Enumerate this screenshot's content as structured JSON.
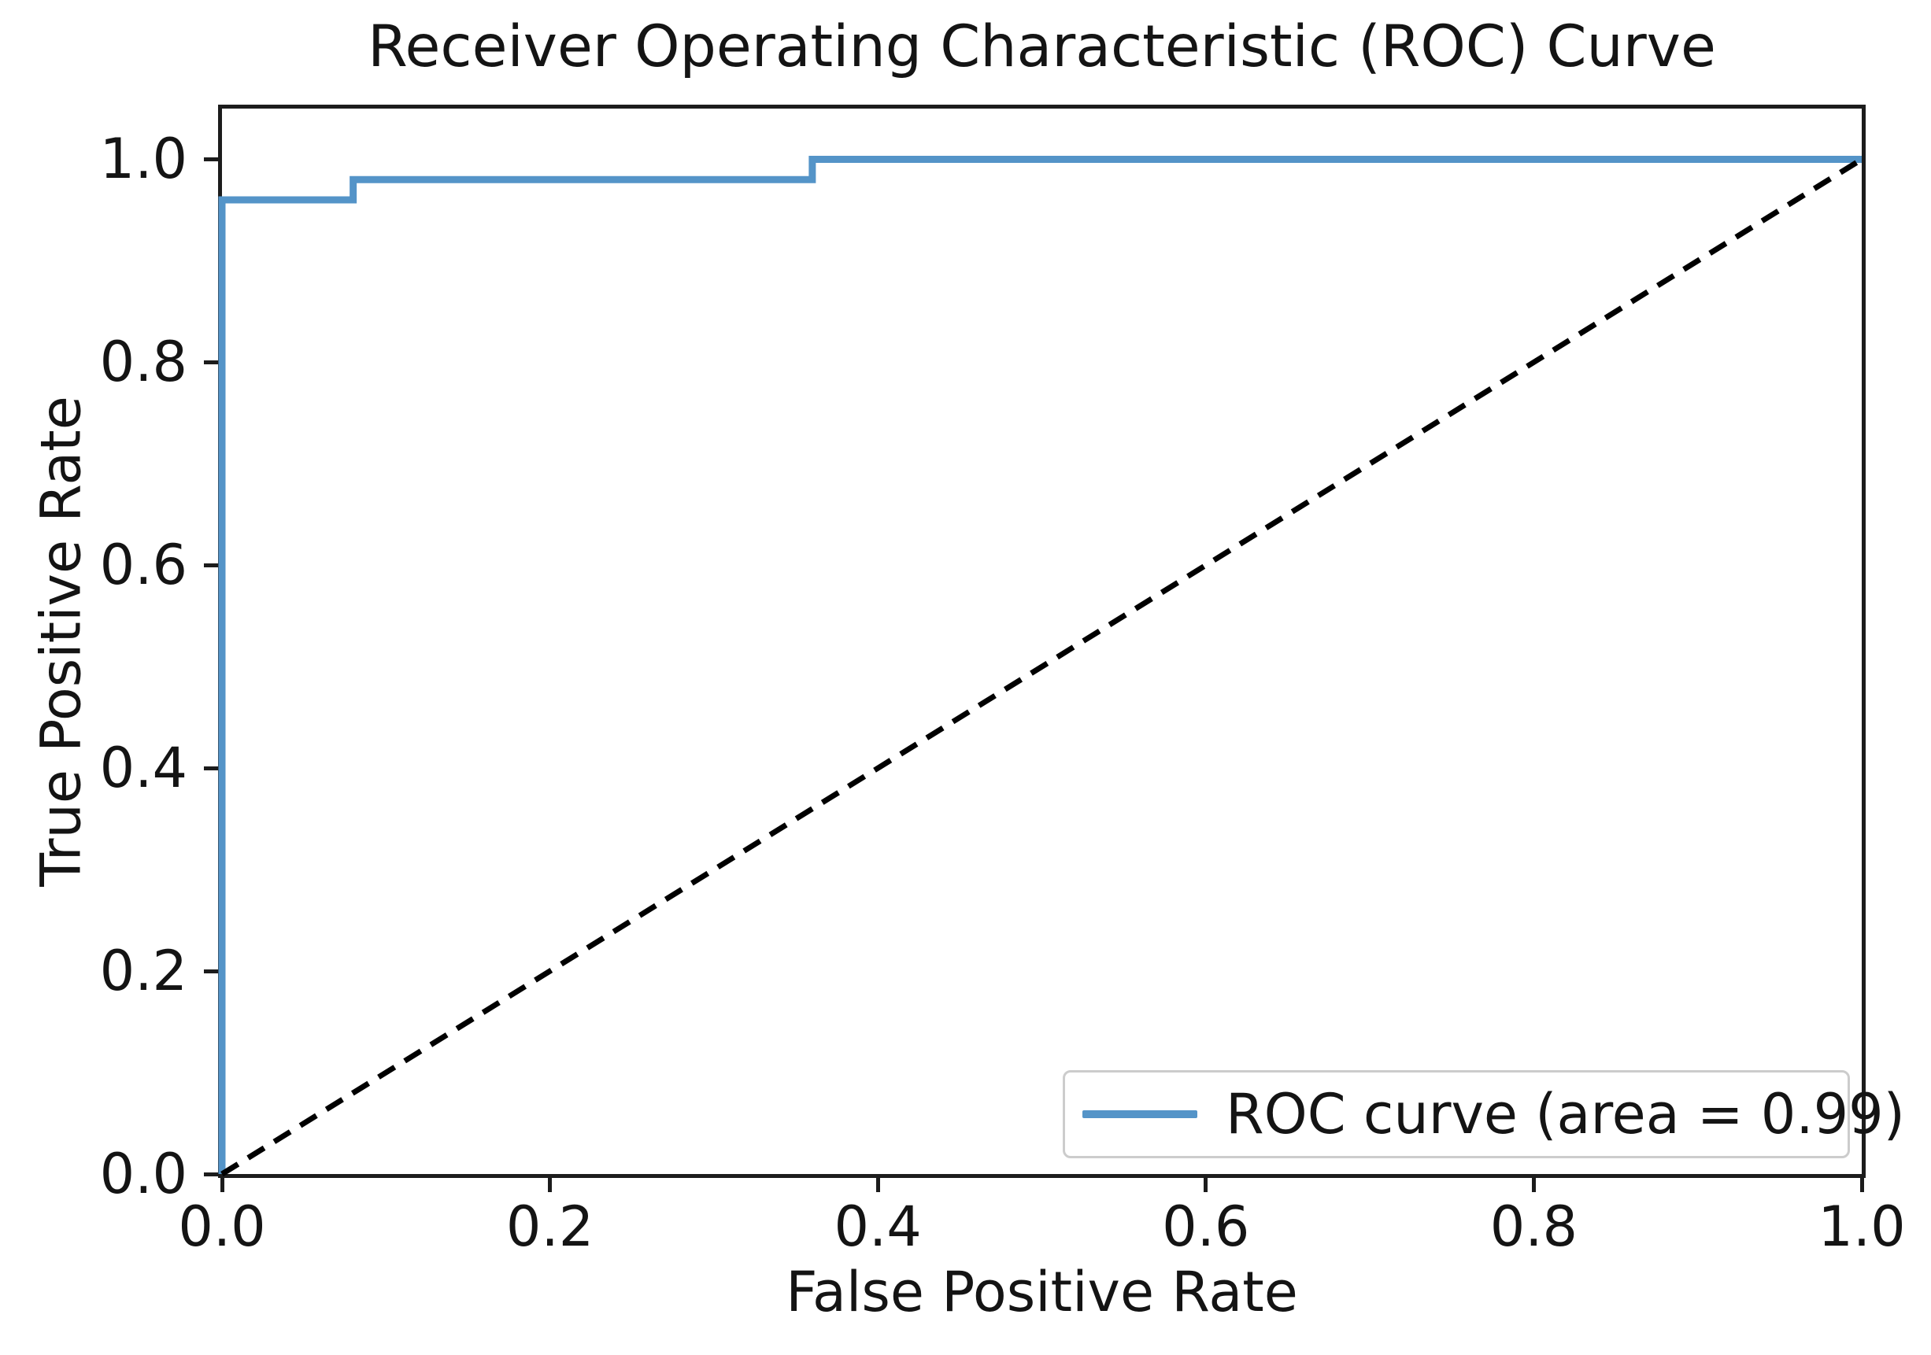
{
  "figure": {
    "title": "Receiver Operating Characteristic (ROC) Curve",
    "background_color": "#ffffff",
    "spine_color": "#1c1c1c",
    "text_color": "#141414"
  },
  "legend": {
    "position": "lower right",
    "border_color": "#cccccc",
    "entries": [
      {
        "label": "ROC curve (area = 0.99)",
        "color": "#5494c8",
        "style": "solid"
      }
    ]
  },
  "chart_data": {
    "type": "line",
    "title": "Receiver Operating Characteristic (ROC) Curve",
    "xlabel": "False Positive Rate",
    "ylabel": "True Positive Rate",
    "xlim": [
      0.0,
      1.0
    ],
    "ylim": [
      0.0,
      1.05
    ],
    "grid": false,
    "legend_position": "lower right",
    "x_tick_values": [
      0.0,
      0.2,
      0.4,
      0.6,
      0.8,
      1.0
    ],
    "x_tick_labels": [
      "0.0",
      "0.2",
      "0.4",
      "0.6",
      "0.8",
      "1.0"
    ],
    "y_tick_values": [
      0.0,
      0.2,
      0.4,
      0.6,
      0.8,
      1.0
    ],
    "y_tick_labels": [
      "0.0",
      "0.2",
      "0.4",
      "0.6",
      "0.8",
      "1.0"
    ],
    "auc": 0.99,
    "series": [
      {
        "name": "ROC curve (area = 0.99)",
        "data_name": "roc-curve-line",
        "color": "#5494c8",
        "style": "solid",
        "line_width": 9,
        "x": [
          0.0,
          0.0,
          0.08,
          0.08,
          0.36,
          0.36,
          1.0
        ],
        "y": [
          0.0,
          0.96,
          0.96,
          0.98,
          0.98,
          1.0,
          1.0
        ]
      },
      {
        "name": "chance diagonal",
        "data_name": "chance-diagonal-line",
        "color": "#000000",
        "style": "dashed",
        "line_width": 7,
        "x": [
          0.0,
          1.0
        ],
        "y": [
          0.0,
          1.0
        ]
      }
    ]
  }
}
